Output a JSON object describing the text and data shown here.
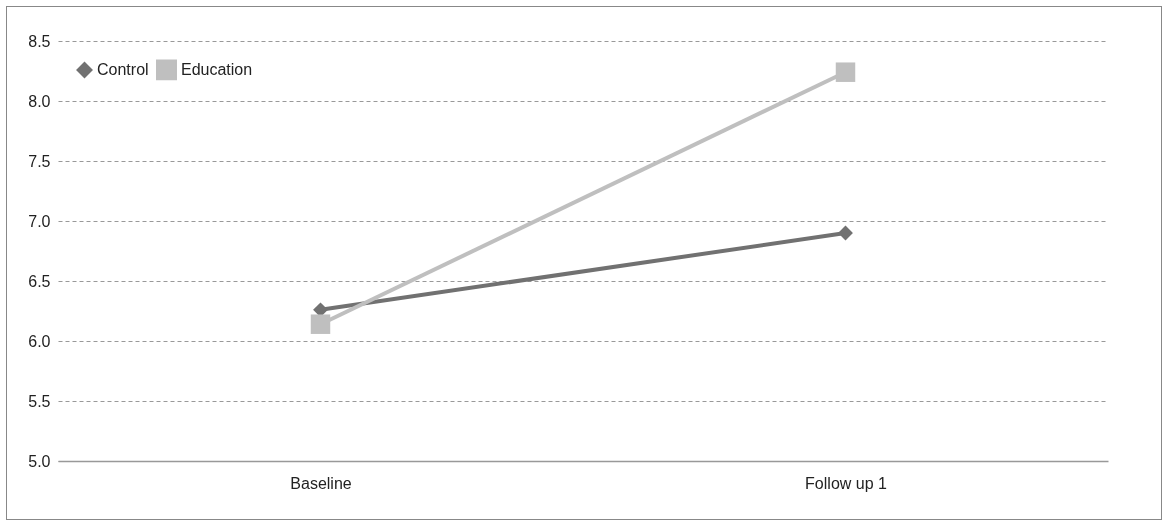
{
  "chart_data": {
    "type": "line",
    "categories": [
      "Baseline",
      "Follow up 1"
    ],
    "series": [
      {
        "name": "Control",
        "color": "#717171",
        "marker": "diamond",
        "values": [
          6.26,
          6.9
        ]
      },
      {
        "name": "Education",
        "color": "#bfbfbf",
        "marker": "square",
        "values": [
          6.14,
          8.24
        ]
      }
    ],
    "ylim": [
      5.0,
      8.5
    ],
    "yticks": [
      {
        "value": 5,
        "label": "5.0"
      },
      {
        "value": 5.5,
        "label": "5.5"
      },
      {
        "value": 6,
        "label": "6.0"
      },
      {
        "value": 6.5,
        "label": "6.5"
      },
      {
        "value": 7,
        "label": "7.0"
      },
      {
        "value": 7.5,
        "label": "7.5"
      },
      {
        "value": 8,
        "label": "8.0"
      },
      {
        "value": 8.5,
        "label": "8.5"
      }
    ],
    "grid": "y",
    "legend": "top left",
    "line_style": "solid"
  }
}
